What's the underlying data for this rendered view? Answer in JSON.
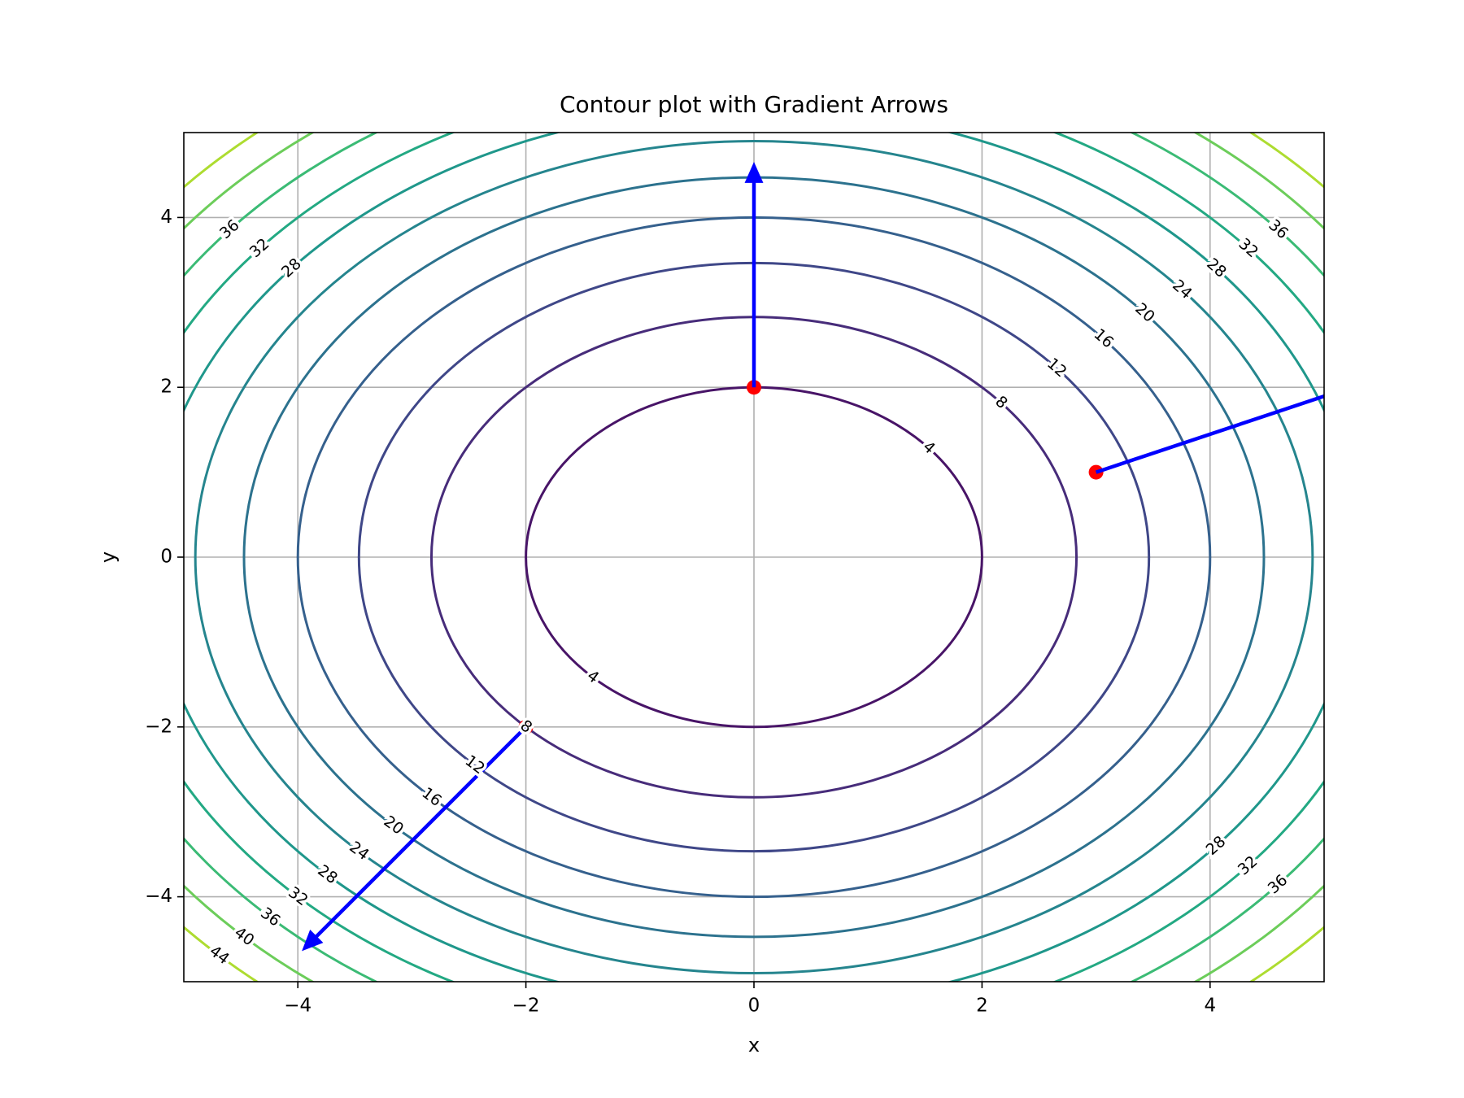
{
  "chart_data": {
    "type": "contour",
    "title": "Contour plot with Gradient Arrows",
    "xlabel": "x",
    "ylabel": "y",
    "xlim": [
      -5,
      5
    ],
    "ylim": [
      -5,
      5
    ],
    "xticks": [
      {
        "value": -4,
        "label": "−4"
      },
      {
        "value": -2,
        "label": "−2"
      },
      0,
      2,
      4
    ],
    "yticks": [
      {
        "value": -4,
        "label": "−4"
      },
      {
        "value": -2,
        "label": "−2"
      },
      0,
      2,
      4
    ],
    "grid": true,
    "levels": [
      4,
      8,
      12,
      16,
      20,
      24,
      28,
      32,
      36,
      40,
      44
    ],
    "level_colors": [
      "#481467",
      "#472c7a",
      "#3f4788",
      "#35608d",
      "#2c728e",
      "#25858e",
      "#1f978b",
      "#23a983",
      "#3bbb75",
      "#6ccd5a",
      "#addc30"
    ],
    "arrows": {
      "x": [
        0,
        3,
        -2
      ],
      "y": [
        2,
        1,
        -2
      ],
      "u": [
        0,
        6,
        -4
      ],
      "v": [
        4,
        2,
        -4
      ],
      "color": "#0000ff"
    },
    "point_color": "#ff0000"
  }
}
